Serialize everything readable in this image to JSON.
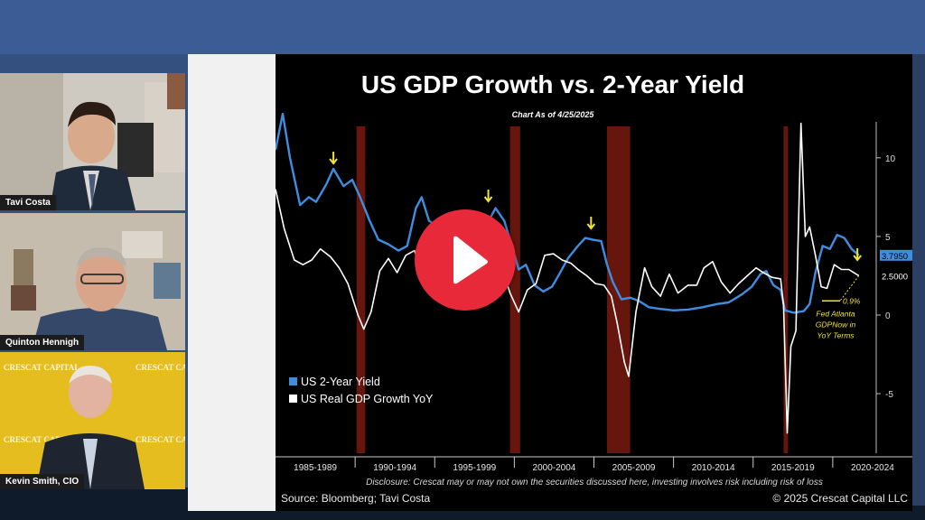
{
  "participants": [
    {
      "name": "Tavi Costa"
    },
    {
      "name": "Quinton Hennigh"
    },
    {
      "name": "Kevin Smith, CIO"
    }
  ],
  "backdrop_text": "CRESCAT CAPITAL",
  "slide": {
    "title": "US GDP Growth vs. 2-Year Yield",
    "subtitle": "Chart As of 4/25/2025",
    "source": "Source: Bloomberg; Tavi Costa",
    "copyright": "© 2025 Crescat Capital LLC",
    "disclosure": "Disclosure: Crescat may or may not own the securities discussed here, investing involves risk including risk of loss"
  },
  "chart_data": {
    "type": "line",
    "title": "US GDP Growth vs. 2-Year Yield",
    "x_ticks": [
      "1985-1989",
      "1990-1994",
      "1995-1999",
      "2000-2004",
      "2005-2009",
      "2010-2014",
      "2015-2019",
      "2020-2024"
    ],
    "y_ticks": [
      10,
      5,
      0,
      -5
    ],
    "ylim": [
      -8.5,
      12
    ],
    "xlim": [
      1985,
      2026.5
    ],
    "recession_shading": [
      [
        1990.6,
        1991.2
      ],
      [
        2001.2,
        2001.9
      ],
      [
        2007.9,
        2009.5
      ],
      [
        2020.1,
        2020.4
      ]
    ],
    "series": [
      {
        "name": "US 2-Year Yield",
        "color": "#3f8de0",
        "last_value_label": "3.7950",
        "points": [
          [
            1985,
            10.5
          ],
          [
            1985.5,
            12.8
          ],
          [
            1986,
            10
          ],
          [
            1986.7,
            7
          ],
          [
            1987.3,
            7.5
          ],
          [
            1987.8,
            7.2
          ],
          [
            1988.5,
            8.3
          ],
          [
            1989,
            9.3
          ],
          [
            1989.7,
            8.2
          ],
          [
            1990.3,
            8.6
          ],
          [
            1990.8,
            7.6
          ],
          [
            1991.5,
            6
          ],
          [
            1992.1,
            4.8
          ],
          [
            1992.8,
            4.5
          ],
          [
            1993.5,
            4.1
          ],
          [
            1994.1,
            4.4
          ],
          [
            1994.7,
            6.8
          ],
          [
            1995.1,
            7.5
          ],
          [
            1995.6,
            6
          ],
          [
            1996.2,
            5.6
          ],
          [
            1996.8,
            6.2
          ],
          [
            1997.5,
            6
          ],
          [
            1998.2,
            5.6
          ],
          [
            1998.8,
            4.5
          ],
          [
            1999.5,
            5.6
          ],
          [
            2000.2,
            6.8
          ],
          [
            2000.8,
            6
          ],
          [
            2001.3,
            4.5
          ],
          [
            2001.8,
            2.9
          ],
          [
            2002.3,
            3.2
          ],
          [
            2002.9,
            1.9
          ],
          [
            2003.5,
            1.5
          ],
          [
            2004.1,
            1.8
          ],
          [
            2004.6,
            2.6
          ],
          [
            2005.2,
            3.6
          ],
          [
            2005.8,
            4.3
          ],
          [
            2006.4,
            4.9
          ],
          [
            2006.9,
            4.8
          ],
          [
            2007.5,
            4.7
          ],
          [
            2007.9,
            3.2
          ],
          [
            2008.3,
            2.1
          ],
          [
            2008.9,
            1
          ],
          [
            2009.5,
            1.1
          ],
          [
            2010.1,
            0.9
          ],
          [
            2010.8,
            0.5
          ],
          [
            2011.5,
            0.4
          ],
          [
            2012.5,
            0.3
          ],
          [
            2013.5,
            0.35
          ],
          [
            2014.5,
            0.5
          ],
          [
            2015.5,
            0.7
          ],
          [
            2016.3,
            0.8
          ],
          [
            2017.2,
            1.3
          ],
          [
            2017.9,
            1.8
          ],
          [
            2018.5,
            2.6
          ],
          [
            2018.9,
            2.8
          ],
          [
            2019.4,
            1.9
          ],
          [
            2019.9,
            1.6
          ],
          [
            2020.2,
            0.3
          ],
          [
            2020.8,
            0.15
          ],
          [
            2021.5,
            0.25
          ],
          [
            2021.9,
            0.7
          ],
          [
            2022.3,
            2.7
          ],
          [
            2022.8,
            4.4
          ],
          [
            2023.3,
            4.2
          ],
          [
            2023.8,
            5.1
          ],
          [
            2024.3,
            4.9
          ],
          [
            2024.8,
            4.2
          ],
          [
            2025.3,
            3.8
          ]
        ]
      },
      {
        "name": "US Real GDP Growth YoY",
        "color": "#ffffff",
        "last_value_label": "2.5000",
        "points": [
          [
            1985,
            8
          ],
          [
            1985.6,
            5.5
          ],
          [
            1986.3,
            3.5
          ],
          [
            1986.9,
            3.2
          ],
          [
            1987.5,
            3.5
          ],
          [
            1988.1,
            4.2
          ],
          [
            1988.8,
            3.7
          ],
          [
            1989.4,
            3
          ],
          [
            1990,
            2
          ],
          [
            1990.7,
            0
          ],
          [
            1991.1,
            -0.9
          ],
          [
            1991.6,
            0.2
          ],
          [
            1992.2,
            2.8
          ],
          [
            1992.8,
            3.6
          ],
          [
            1993.4,
            2.7
          ],
          [
            1994,
            3.8
          ],
          [
            1994.6,
            4.1
          ],
          [
            1995.2,
            2.5
          ],
          [
            1995.8,
            2.9
          ],
          [
            1996.4,
            3.9
          ],
          [
            1997,
            4.5
          ],
          [
            1997.7,
            4.3
          ],
          [
            1998.3,
            4.6
          ],
          [
            1998.9,
            4.8
          ],
          [
            1999.5,
            4.5
          ],
          [
            2000,
            4.2
          ],
          [
            2000.6,
            3.2
          ],
          [
            2001.2,
            1.4
          ],
          [
            2001.8,
            0.2
          ],
          [
            2002.4,
            1.6
          ],
          [
            2003,
            2
          ],
          [
            2003.6,
            3.8
          ],
          [
            2004.2,
            3.9
          ],
          [
            2004.8,
            3.5
          ],
          [
            2005.4,
            3.3
          ],
          [
            2005.9,
            2.9
          ],
          [
            2006.5,
            2.5
          ],
          [
            2007.1,
            2
          ],
          [
            2007.7,
            1.9
          ],
          [
            2008.2,
            1.2
          ],
          [
            2008.6,
            -0.5
          ],
          [
            2009.1,
            -3
          ],
          [
            2009.4,
            -3.9
          ],
          [
            2009.9,
            0.2
          ],
          [
            2010.5,
            3
          ],
          [
            2011,
            1.8
          ],
          [
            2011.6,
            1.2
          ],
          [
            2012.2,
            2.6
          ],
          [
            2012.8,
            1.4
          ],
          [
            2013.5,
            1.9
          ],
          [
            2014.1,
            1.9
          ],
          [
            2014.6,
            3
          ],
          [
            2015.2,
            3.4
          ],
          [
            2015.8,
            2.1
          ],
          [
            2016.4,
            1.4
          ],
          [
            2017,
            2
          ],
          [
            2017.6,
            2.5
          ],
          [
            2018.2,
            3
          ],
          [
            2018.7,
            2.7
          ],
          [
            2019.3,
            2.4
          ],
          [
            2019.9,
            2.3
          ],
          [
            2020.1,
            0.6
          ],
          [
            2020.35,
            -7.5
          ],
          [
            2020.6,
            -2
          ],
          [
            2020.95,
            -1
          ],
          [
            2021.3,
            12.2
          ],
          [
            2021.6,
            5
          ],
          [
            2021.9,
            5.6
          ],
          [
            2022.3,
            3.8
          ],
          [
            2022.7,
            1.8
          ],
          [
            2023.1,
            1.7
          ],
          [
            2023.6,
            3.2
          ],
          [
            2024.1,
            2.9
          ],
          [
            2024.6,
            2.9
          ],
          [
            2025.3,
            2.5
          ]
        ]
      }
    ],
    "annotations": {
      "nowcast_label": "0.9%",
      "nowcast_note_lines": [
        "Fed Atlanta",
        "GDPNow in",
        "YoY Terms"
      ],
      "arrow_years": [
        1989,
        1999.7,
        2006.8,
        2025.2
      ]
    }
  }
}
